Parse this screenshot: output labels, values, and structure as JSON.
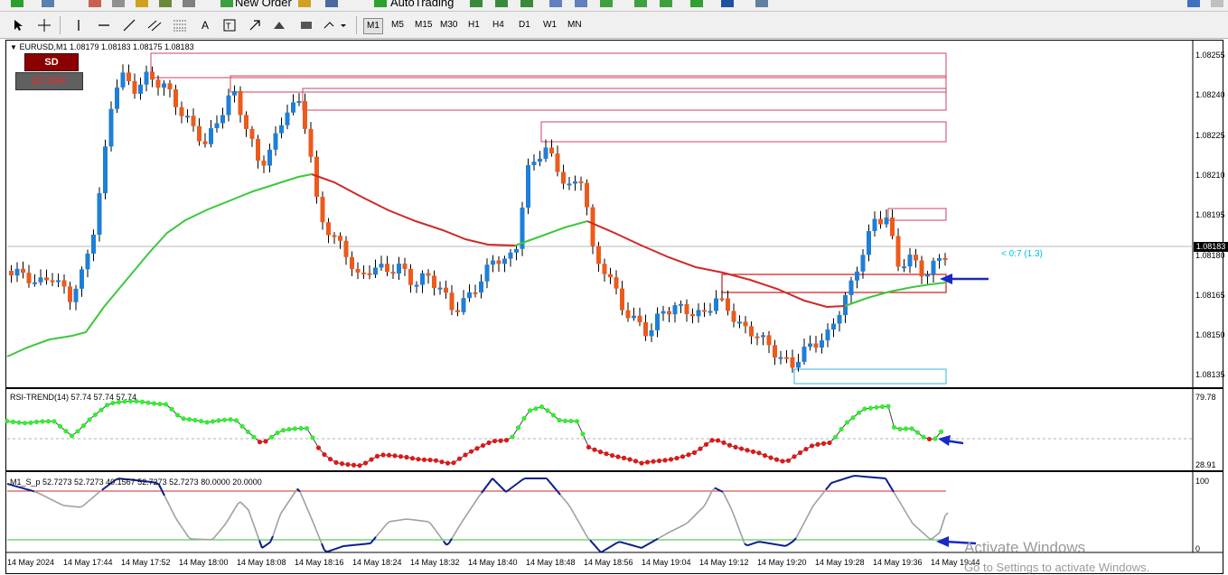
{
  "toolbar": {
    "new_order_label": "New Order",
    "autotrading_label": "AutoTrading",
    "timeframes": [
      "M1",
      "M5",
      "M15",
      "M30",
      "H1",
      "H4",
      "D1",
      "W1",
      "MN"
    ],
    "active_timeframe": "M1"
  },
  "chart": {
    "symbol_info": "EURUSD,M1  1.08179 1.08183 1.08175 1.08183",
    "sd_button": "SD",
    "zz_button": "ZZ OFF",
    "current_price": "1.08183",
    "spread_text": "< 0:7 (1.3)",
    "price_labels": [
      "1.08255",
      "1.08240",
      "1.08225",
      "1.08210",
      "1.08195",
      "1.08180",
      "1.08165",
      "1.08150",
      "1.08135"
    ],
    "time_labels": [
      "14 May 2024",
      "14 May 17:44",
      "14 May 17:52",
      "14 May 18:00",
      "14 May 18:08",
      "14 May 18:16",
      "14 May 18:24",
      "14 May 18:32",
      "14 May 18:40",
      "14 May 18:48",
      "14 May 18:56",
      "14 May 19:04",
      "14 May 19:12",
      "14 May 19:20",
      "14 May 19:28",
      "14 May 19:36",
      "14 May 19:44"
    ],
    "colors": {
      "bull": "#1e7fd8",
      "bear": "#ec5a1c",
      "ma_green": "#3cc83c",
      "ma_red": "#d02828",
      "zone_red": "#d04060",
      "zone_cyan": "#30b8d8",
      "arrow": "#1a28c8"
    }
  },
  "rsi": {
    "label": "RSI-TREND(14) 57.74 57.74 57.74",
    "top_label": "79.78",
    "bottom_label": "28.91"
  },
  "stoch": {
    "label": "M1_S_p 52.7273 52.7273 40.1567 52.7273 52.7273 80.0000 20.0000",
    "top_label": "100",
    "bottom_label": "0"
  },
  "watermark": {
    "line1": "Activate Windows",
    "line2": "Go to Settings to activate Windows."
  }
}
